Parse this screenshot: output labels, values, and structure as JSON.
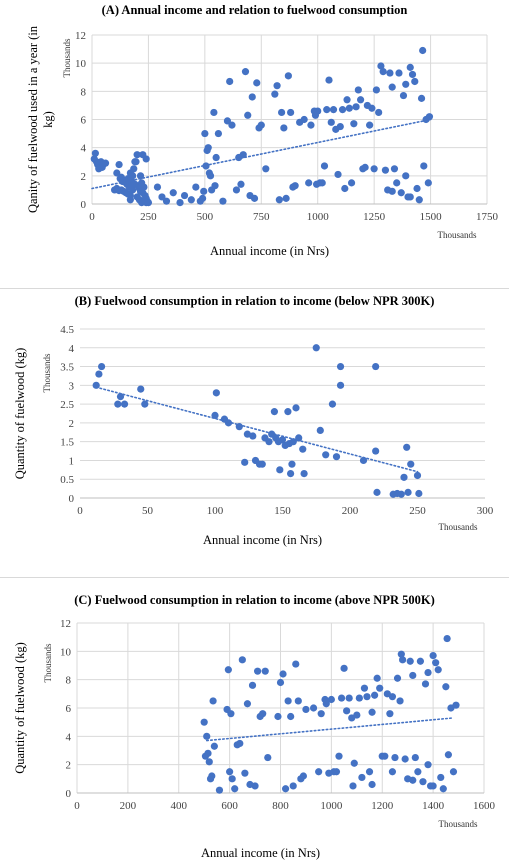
{
  "chart_data": [
    {
      "type": "scatter",
      "title": "(A) Annual income and relation to fuelwood consumption",
      "xlabel": "Annual income (in Nrs)",
      "ylabel": "Qanity of fuelwood used in a year (in kg)",
      "x_unit": "Thousands",
      "y_unit": "Thousands",
      "xlim": [
        0,
        1750
      ],
      "ylim": [
        0,
        12
      ],
      "x_ticks": [
        "0",
        "250",
        "500",
        "750",
        "1000",
        "1250",
        "1500",
        "1750"
      ],
      "y_ticks": [
        "0",
        "2",
        "4",
        "6",
        "8",
        "10",
        "12"
      ],
      "grid": "vertical-and-horizontal",
      "marker_color": "#4472c4",
      "trendline": {
        "style": "dotted",
        "from": [
          0,
          1.1
        ],
        "to": [
          1500,
          6.0
        ]
      },
      "points": [
        [
          10,
          3.2
        ],
        [
          15,
          3.6
        ],
        [
          20,
          3.0
        ],
        [
          25,
          2.8
        ],
        [
          30,
          2.5
        ],
        [
          40,
          3.0
        ],
        [
          45,
          2.6
        ],
        [
          50,
          2.8
        ],
        [
          60,
          2.9
        ],
        [
          110,
          2.2
        ],
        [
          120,
          2.8
        ],
        [
          125,
          1.8
        ],
        [
          130,
          1.9
        ],
        [
          135,
          1.6
        ],
        [
          140,
          1.7
        ],
        [
          145,
          1.6
        ],
        [
          150,
          1.5
        ],
        [
          155,
          1.4
        ],
        [
          160,
          1.8
        ],
        [
          165,
          1.2
        ],
        [
          170,
          2.2
        ],
        [
          175,
          1.6
        ],
        [
          180,
          1.0
        ],
        [
          185,
          2.5
        ],
        [
          190,
          1.4
        ],
        [
          195,
          3.0
        ],
        [
          200,
          3.5
        ],
        [
          205,
          1.3
        ],
        [
          210,
          1.1
        ],
        [
          215,
          0.9
        ],
        [
          220,
          1.5
        ],
        [
          225,
          0.8
        ],
        [
          230,
          1.2
        ],
        [
          235,
          0.6
        ],
        [
          240,
          0.4
        ],
        [
          245,
          0.2
        ],
        [
          250,
          0.1
        ],
        [
          130,
          1.0
        ],
        [
          140,
          0.9
        ],
        [
          150,
          0.8
        ],
        [
          160,
          0.7
        ],
        [
          170,
          0.6
        ],
        [
          200,
          0.5
        ],
        [
          210,
          0.3
        ],
        [
          220,
          0.1
        ],
        [
          230,
          0.2
        ],
        [
          240,
          0.1
        ],
        [
          100,
          1.0
        ],
        [
          110,
          1.1
        ],
        [
          120,
          0.95
        ],
        [
          170,
          0.3
        ],
        [
          180,
          2.0
        ],
        [
          190,
          3.0
        ],
        [
          215,
          2.0
        ],
        [
          225,
          3.5
        ],
        [
          240,
          3.2
        ],
        [
          290,
          1.2
        ],
        [
          310,
          0.5
        ],
        [
          330,
          0.2
        ],
        [
          360,
          0.8
        ],
        [
          390,
          0.1
        ],
        [
          410,
          0.6
        ],
        [
          440,
          0.3
        ],
        [
          460,
          1.2
        ],
        [
          480,
          0.2
        ],
        [
          490,
          0.4
        ],
        [
          495,
          0.9
        ],
        [
          500,
          5.0
        ],
        [
          505,
          2.7
        ],
        [
          510,
          3.8
        ],
        [
          515,
          4.0
        ],
        [
          520,
          2.2
        ],
        [
          525,
          2.0
        ],
        [
          530,
          1.0
        ],
        [
          540,
          6.5
        ],
        [
          545,
          1.3
        ],
        [
          550,
          3.3
        ],
        [
          560,
          5.0
        ],
        [
          580,
          0.2
        ],
        [
          600,
          5.9
        ],
        [
          610,
          8.7
        ],
        [
          620,
          5.6
        ],
        [
          640,
          1.0
        ],
        [
          650,
          3.3
        ],
        [
          660,
          1.4
        ],
        [
          670,
          3.5
        ],
        [
          680,
          9.4
        ],
        [
          690,
          6.3
        ],
        [
          700,
          0.6
        ],
        [
          710,
          7.6
        ],
        [
          720,
          0.4
        ],
        [
          730,
          8.6
        ],
        [
          740,
          5.4
        ],
        [
          750,
          5.6
        ],
        [
          770,
          2.5
        ],
        [
          810,
          7.8
        ],
        [
          820,
          8.4
        ],
        [
          830,
          0.3
        ],
        [
          840,
          6.5
        ],
        [
          850,
          5.4
        ],
        [
          860,
          0.4
        ],
        [
          870,
          9.1
        ],
        [
          880,
          6.5
        ],
        [
          890,
          1.2
        ],
        [
          900,
          1.3
        ],
        [
          920,
          5.8
        ],
        [
          940,
          6.0
        ],
        [
          960,
          1.5
        ],
        [
          970,
          5.6
        ],
        [
          985,
          6.6
        ],
        [
          990,
          6.3
        ],
        [
          995,
          1.4
        ],
        [
          1000,
          6.6
        ],
        [
          1010,
          1.5
        ],
        [
          1020,
          1.5
        ],
        [
          1030,
          2.7
        ],
        [
          1040,
          6.7
        ],
        [
          1050,
          8.8
        ],
        [
          1060,
          5.8
        ],
        [
          1070,
          6.7
        ],
        [
          1080,
          5.3
        ],
        [
          1090,
          2.1
        ],
        [
          1100,
          5.5
        ],
        [
          1110,
          6.7
        ],
        [
          1120,
          1.1
        ],
        [
          1130,
          7.4
        ],
        [
          1140,
          6.8
        ],
        [
          1150,
          1.5
        ],
        [
          1160,
          5.7
        ],
        [
          1170,
          6.9
        ],
        [
          1180,
          8.1
        ],
        [
          1190,
          7.4
        ],
        [
          1200,
          2.5
        ],
        [
          1210,
          2.6
        ],
        [
          1220,
          7.0
        ],
        [
          1230,
          5.6
        ],
        [
          1240,
          6.8
        ],
        [
          1250,
          2.5
        ],
        [
          1260,
          8.1
        ],
        [
          1270,
          6.5
        ],
        [
          1280,
          9.8
        ],
        [
          1290,
          9.4
        ],
        [
          1300,
          2.4
        ],
        [
          1310,
          1.0
        ],
        [
          1320,
          9.3
        ],
        [
          1330,
          8.3
        ],
        [
          1340,
          2.5
        ],
        [
          1350,
          1.5
        ],
        [
          1360,
          9.3
        ],
        [
          1370,
          0.8
        ],
        [
          1380,
          7.7
        ],
        [
          1390,
          8.5
        ],
        [
          1400,
          0.5
        ],
        [
          1410,
          9.7
        ],
        [
          1420,
          9.2
        ],
        [
          1430,
          8.7
        ],
        [
          1440,
          1.1
        ],
        [
          1450,
          0.3
        ],
        [
          1460,
          7.5
        ],
        [
          1465,
          10.9
        ],
        [
          1470,
          2.7
        ],
        [
          1480,
          6.0
        ],
        [
          1490,
          1.5
        ],
        [
          1495,
          6.2
        ],
        [
          1390,
          2.0
        ],
        [
          1410,
          0.5
        ],
        [
          1330,
          0.9
        ]
      ]
    },
    {
      "type": "scatter",
      "title": "(B) Fuelwood consumption in relation to income (below NPR 300K)",
      "xlabel": "Annual income (in Nrs)",
      "ylabel": "Quantity of fuelwood (kg)",
      "x_unit": "Thousands",
      "y_unit": "Thousands",
      "xlim": [
        0,
        300
      ],
      "ylim": [
        0,
        4.5
      ],
      "x_ticks": [
        "0",
        "50",
        "100",
        "150",
        "200",
        "250",
        "300"
      ],
      "y_ticks": [
        "0",
        "0.5",
        "1",
        "1.5",
        "2",
        "2.5",
        "3",
        "3.5",
        "4",
        "4.5"
      ],
      "grid": "horizontal",
      "marker_color": "#4472c4",
      "trendline": {
        "style": "dotted",
        "from": [
          12,
          2.95
        ],
        "to": [
          250,
          0.7
        ]
      },
      "points": [
        [
          12,
          3.0
        ],
        [
          14,
          3.3
        ],
        [
          16,
          3.5
        ],
        [
          28,
          2.5
        ],
        [
          30,
          2.7
        ],
        [
          33,
          2.5
        ],
        [
          45,
          2.9
        ],
        [
          48,
          2.5
        ],
        [
          100,
          2.2
        ],
        [
          101,
          2.8
        ],
        [
          107,
          2.1
        ],
        [
          110,
          2.0
        ],
        [
          118,
          1.9
        ],
        [
          122,
          0.95
        ],
        [
          124,
          1.7
        ],
        [
          128,
          1.65
        ],
        [
          130,
          1.0
        ],
        [
          133,
          0.9
        ],
        [
          135,
          0.9
        ],
        [
          137,
          1.6
        ],
        [
          140,
          1.5
        ],
        [
          142,
          1.7
        ],
        [
          144,
          2.3
        ],
        [
          145,
          1.6
        ],
        [
          147,
          1.5
        ],
        [
          148,
          0.75
        ],
        [
          150,
          1.55
        ],
        [
          152,
          1.4
        ],
        [
          154,
          2.3
        ],
        [
          155,
          1.45
        ],
        [
          156,
          0.65
        ],
        [
          157,
          0.9
        ],
        [
          158,
          1.5
        ],
        [
          160,
          2.4
        ],
        [
          162,
          1.6
        ],
        [
          165,
          1.3
        ],
        [
          166,
          0.65
        ],
        [
          175,
          4.0
        ],
        [
          178,
          1.8
        ],
        [
          182,
          1.15
        ],
        [
          187,
          2.5
        ],
        [
          190,
          1.1
        ],
        [
          193,
          3.5
        ],
        [
          193,
          3.0
        ],
        [
          210,
          1.0
        ],
        [
          219,
          3.5
        ],
        [
          219,
          1.25
        ],
        [
          220,
          0.15
        ],
        [
          232,
          0.1
        ],
        [
          235,
          0.12
        ],
        [
          238,
          0.1
        ],
        [
          240,
          0.55
        ],
        [
          242,
          1.35
        ],
        [
          243,
          0.15
        ],
        [
          245,
          0.9
        ],
        [
          250,
          0.6
        ],
        [
          251,
          0.12
        ]
      ]
    },
    {
      "type": "scatter",
      "title": "(C) Fuelwood consumption in relation to income (above NPR 500K)",
      "xlabel": "Annual income (in Nrs)",
      "ylabel": "Quantity of fuelwood (kg)",
      "x_unit": "Thousands",
      "y_unit": "Thousands",
      "xlim": [
        0,
        1600
      ],
      "ylim": [
        0,
        12
      ],
      "x_ticks": [
        "0",
        "200",
        "400",
        "600",
        "800",
        "1000",
        "1200",
        "1400",
        "1600"
      ],
      "y_ticks": [
        "0",
        "2",
        "4",
        "6",
        "8",
        "10",
        "12"
      ],
      "grid": "vertical-and-horizontal",
      "marker_color": "#4472c4",
      "trendline": {
        "style": "dotted",
        "from": [
          510,
          3.7
        ],
        "to": [
          1480,
          5.3
        ]
      },
      "points": [
        [
          500,
          5.0
        ],
        [
          505,
          2.6
        ],
        [
          510,
          4.0
        ],
        [
          515,
          2.8
        ],
        [
          520,
          2.2
        ],
        [
          525,
          1.0
        ],
        [
          530,
          1.2
        ],
        [
          535,
          6.5
        ],
        [
          540,
          3.3
        ],
        [
          560,
          0.2
        ],
        [
          590,
          5.9
        ],
        [
          595,
          8.7
        ],
        [
          600,
          1.5
        ],
        [
          605,
          5.6
        ],
        [
          610,
          1.0
        ],
        [
          620,
          0.3
        ],
        [
          630,
          3.4
        ],
        [
          640,
          3.5
        ],
        [
          650,
          9.4
        ],
        [
          660,
          1.4
        ],
        [
          670,
          6.3
        ],
        [
          680,
          0.6
        ],
        [
          690,
          7.6
        ],
        [
          700,
          0.5
        ],
        [
          710,
          8.6
        ],
        [
          720,
          5.4
        ],
        [
          730,
          5.6
        ],
        [
          740,
          8.6
        ],
        [
          750,
          2.5
        ],
        [
          790,
          5.4
        ],
        [
          800,
          7.8
        ],
        [
          810,
          8.4
        ],
        [
          820,
          0.3
        ],
        [
          830,
          6.5
        ],
        [
          840,
          5.4
        ],
        [
          850,
          0.5
        ],
        [
          860,
          9.1
        ],
        [
          870,
          6.5
        ],
        [
          880,
          1.0
        ],
        [
          890,
          1.2
        ],
        [
          900,
          5.9
        ],
        [
          930,
          6.0
        ],
        [
          950,
          1.5
        ],
        [
          960,
          5.6
        ],
        [
          975,
          6.6
        ],
        [
          980,
          6.3
        ],
        [
          990,
          1.4
        ],
        [
          1000,
          6.6
        ],
        [
          1010,
          1.5
        ],
        [
          1020,
          1.5
        ],
        [
          1030,
          2.6
        ],
        [
          1040,
          6.7
        ],
        [
          1050,
          8.8
        ],
        [
          1060,
          5.8
        ],
        [
          1070,
          6.7
        ],
        [
          1080,
          5.3
        ],
        [
          1090,
          2.1
        ],
        [
          1100,
          5.5
        ],
        [
          1110,
          6.7
        ],
        [
          1120,
          1.1
        ],
        [
          1130,
          7.4
        ],
        [
          1140,
          6.8
        ],
        [
          1150,
          1.5
        ],
        [
          1160,
          5.7
        ],
        [
          1170,
          6.9
        ],
        [
          1180,
          8.1
        ],
        [
          1190,
          7.4
        ],
        [
          1200,
          2.6
        ],
        [
          1210,
          2.6
        ],
        [
          1220,
          7.0
        ],
        [
          1230,
          5.6
        ],
        [
          1240,
          6.8
        ],
        [
          1250,
          2.5
        ],
        [
          1260,
          8.1
        ],
        [
          1270,
          6.5
        ],
        [
          1275,
          9.8
        ],
        [
          1280,
          9.4
        ],
        [
          1290,
          2.4
        ],
        [
          1300,
          1.0
        ],
        [
          1310,
          9.3
        ],
        [
          1320,
          8.3
        ],
        [
          1330,
          2.5
        ],
        [
          1340,
          1.5
        ],
        [
          1350,
          9.3
        ],
        [
          1360,
          0.8
        ],
        [
          1370,
          7.7
        ],
        [
          1380,
          8.5
        ],
        [
          1390,
          0.5
        ],
        [
          1400,
          9.7
        ],
        [
          1410,
          9.2
        ],
        [
          1420,
          8.7
        ],
        [
          1430,
          1.1
        ],
        [
          1440,
          0.3
        ],
        [
          1450,
          7.5
        ],
        [
          1455,
          10.9
        ],
        [
          1460,
          2.7
        ],
        [
          1470,
          6.0
        ],
        [
          1480,
          1.5
        ],
        [
          1490,
          6.2
        ],
        [
          1380,
          2.0
        ],
        [
          1400,
          0.5
        ],
        [
          1320,
          0.9
        ],
        [
          1085,
          0.5
        ],
        [
          1160,
          0.6
        ],
        [
          1240,
          1.5
        ]
      ]
    }
  ]
}
